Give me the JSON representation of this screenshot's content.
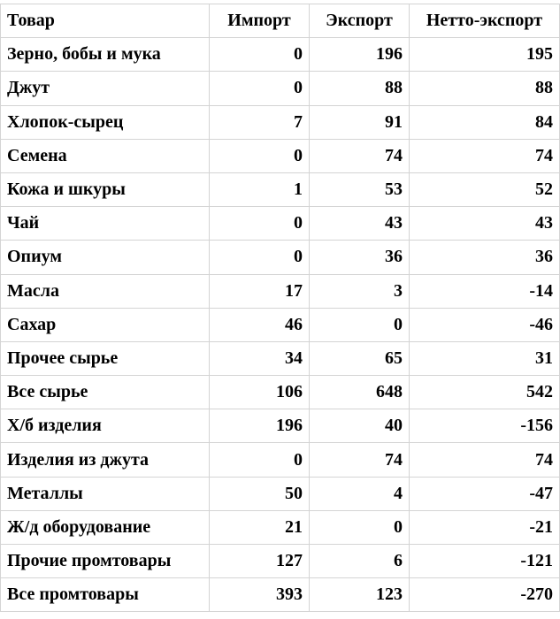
{
  "table": {
    "headers": [
      "Товар",
      "Импорт",
      "Экспорт",
      "Нетто-экспорт"
    ],
    "rows": [
      [
        "Зерно, бобы и мука",
        "0",
        "196",
        "195"
      ],
      [
        "Джут",
        "0",
        "88",
        "88"
      ],
      [
        "Хлопок-сырец",
        "7",
        "91",
        "84"
      ],
      [
        "Семена",
        "0",
        "74",
        "74"
      ],
      [
        "Кожа и шкуры",
        "1",
        "53",
        "52"
      ],
      [
        "Чай",
        "0",
        "43",
        "43"
      ],
      [
        "Опиум",
        "0",
        "36",
        "36"
      ],
      [
        "Масла",
        "17",
        "3",
        "-14"
      ],
      [
        "Сахар",
        "46",
        "0",
        "-46"
      ],
      [
        "Прочее сырье",
        "34",
        "65",
        "31"
      ],
      [
        "Все сырье",
        "106",
        "648",
        "542"
      ],
      [
        "Х/б изделия",
        "196",
        "40",
        "-156"
      ],
      [
        "Изделия из джута",
        "0",
        "74",
        "74"
      ],
      [
        "Металлы",
        "50",
        "4",
        "-47"
      ],
      [
        "Ж/д оборудование",
        "21",
        "0",
        "-21"
      ],
      [
        "Прочие промтовары",
        "127",
        "6",
        "-121"
      ],
      [
        "Все промтовары",
        "393",
        "123",
        "-270"
      ]
    ]
  }
}
